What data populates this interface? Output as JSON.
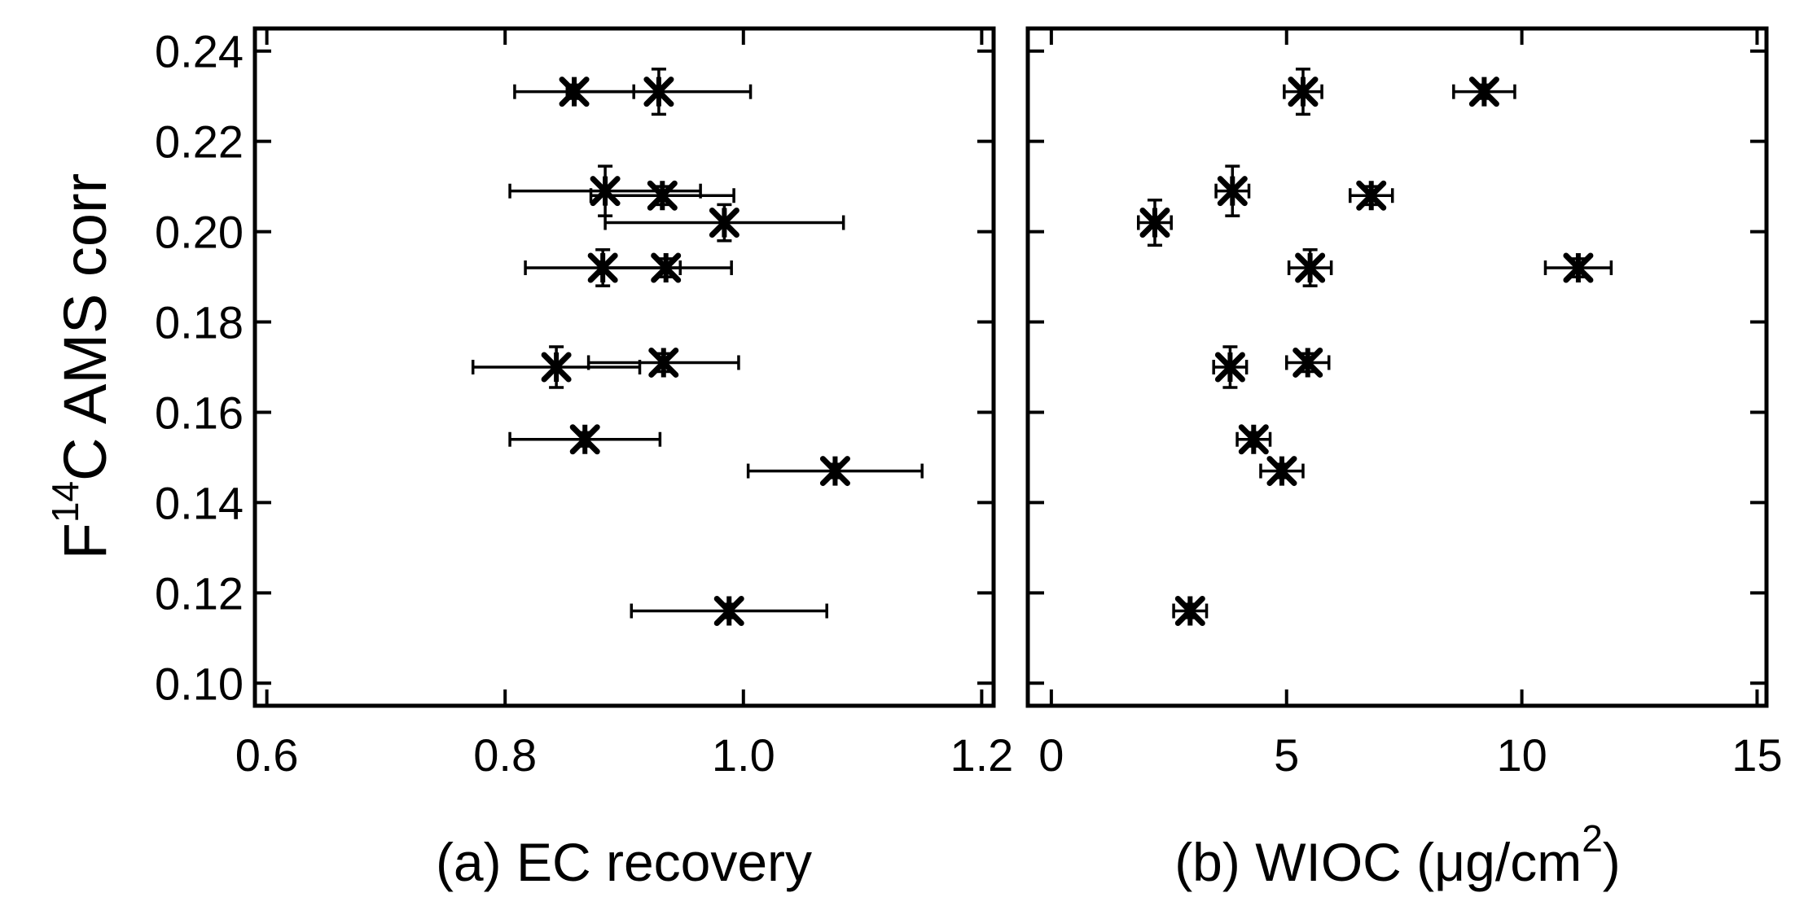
{
  "chart_data": [
    {
      "type": "scatter",
      "id": "a",
      "xlabel": "(a) EC recovery",
      "ylabel": {
        "prefix": "F",
        "superscript": "14",
        "suffix": "C AMS corr"
      },
      "xlim": [
        0.59,
        1.21
      ],
      "ylim": [
        0.095,
        0.245
      ],
      "xticks": [
        0.6,
        0.8,
        1.0,
        1.2
      ],
      "xtick_labels": [
        "0.6",
        "0.8",
        "1.0",
        "1.2"
      ],
      "yticks": [
        0.1,
        0.12,
        0.14,
        0.16,
        0.18,
        0.2,
        0.22,
        0.24
      ],
      "ytick_labels": [
        "0.10",
        "0.12",
        "0.14",
        "0.16",
        "0.18",
        "0.20",
        "0.22",
        "0.24"
      ],
      "grid": false,
      "marker": "asterisk",
      "points": [
        {
          "x": 0.858,
          "y": 0.231,
          "xerr": 0.05,
          "yerr": 0.0015
        },
        {
          "x": 0.929,
          "y": 0.231,
          "xerr": 0.077,
          "yerr": 0.005
        },
        {
          "x": 0.884,
          "y": 0.209,
          "xerr": 0.08,
          "yerr": 0.0055
        },
        {
          "x": 0.932,
          "y": 0.208,
          "xerr": 0.06,
          "yerr": 0.002
        },
        {
          "x": 0.984,
          "y": 0.202,
          "xerr": 0.1,
          "yerr": 0.004
        },
        {
          "x": 0.882,
          "y": 0.192,
          "xerr": 0.065,
          "yerr": 0.004
        },
        {
          "x": 0.935,
          "y": 0.192,
          "xerr": 0.055,
          "yerr": 0.002
        },
        {
          "x": 0.843,
          "y": 0.17,
          "xerr": 0.07,
          "yerr": 0.0045
        },
        {
          "x": 0.933,
          "y": 0.171,
          "xerr": 0.063,
          "yerr": 0.002
        },
        {
          "x": 0.867,
          "y": 0.154,
          "xerr": 0.063,
          "yerr": 0.0015
        },
        {
          "x": 1.077,
          "y": 0.147,
          "xerr": 0.073,
          "yerr": 0.0015
        },
        {
          "x": 0.988,
          "y": 0.116,
          "xerr": 0.082,
          "yerr": 0.0015
        }
      ]
    },
    {
      "type": "scatter",
      "id": "b",
      "xlabel": "(b) WIOC (μg/cm²)",
      "xlabel_parts": {
        "main": "(b) WIOC (μg/cm",
        "superscript": "2",
        "close": ")"
      },
      "xlim": [
        -0.5,
        15.2
      ],
      "ylim": [
        0.095,
        0.245
      ],
      "xticks": [
        0,
        5,
        10,
        15
      ],
      "xtick_labels": [
        "0",
        "5",
        "10",
        "15"
      ],
      "yticks": [
        0.1,
        0.12,
        0.14,
        0.16,
        0.18,
        0.2,
        0.22,
        0.24
      ],
      "grid": false,
      "marker": "asterisk",
      "points": [
        {
          "x": 5.35,
          "y": 0.231,
          "xerr": 0.4,
          "yerr": 0.005
        },
        {
          "x": 9.2,
          "y": 0.231,
          "xerr": 0.65,
          "yerr": 0.0015
        },
        {
          "x": 3.85,
          "y": 0.209,
          "xerr": 0.35,
          "yerr": 0.0055
        },
        {
          "x": 6.8,
          "y": 0.208,
          "xerr": 0.45,
          "yerr": 0.002
        },
        {
          "x": 2.2,
          "y": 0.202,
          "xerr": 0.35,
          "yerr": 0.005
        },
        {
          "x": 5.5,
          "y": 0.192,
          "xerr": 0.45,
          "yerr": 0.004
        },
        {
          "x": 11.2,
          "y": 0.192,
          "xerr": 0.7,
          "yerr": 0.002
        },
        {
          "x": 3.8,
          "y": 0.17,
          "xerr": 0.35,
          "yerr": 0.0045
        },
        {
          "x": 5.45,
          "y": 0.171,
          "xerr": 0.45,
          "yerr": 0.002
        },
        {
          "x": 4.3,
          "y": 0.154,
          "xerr": 0.35,
          "yerr": 0.0015
        },
        {
          "x": 4.9,
          "y": 0.147,
          "xerr": 0.45,
          "yerr": 0.0015
        },
        {
          "x": 2.95,
          "y": 0.116,
          "xerr": 0.35,
          "yerr": 0.0015
        }
      ]
    }
  ]
}
